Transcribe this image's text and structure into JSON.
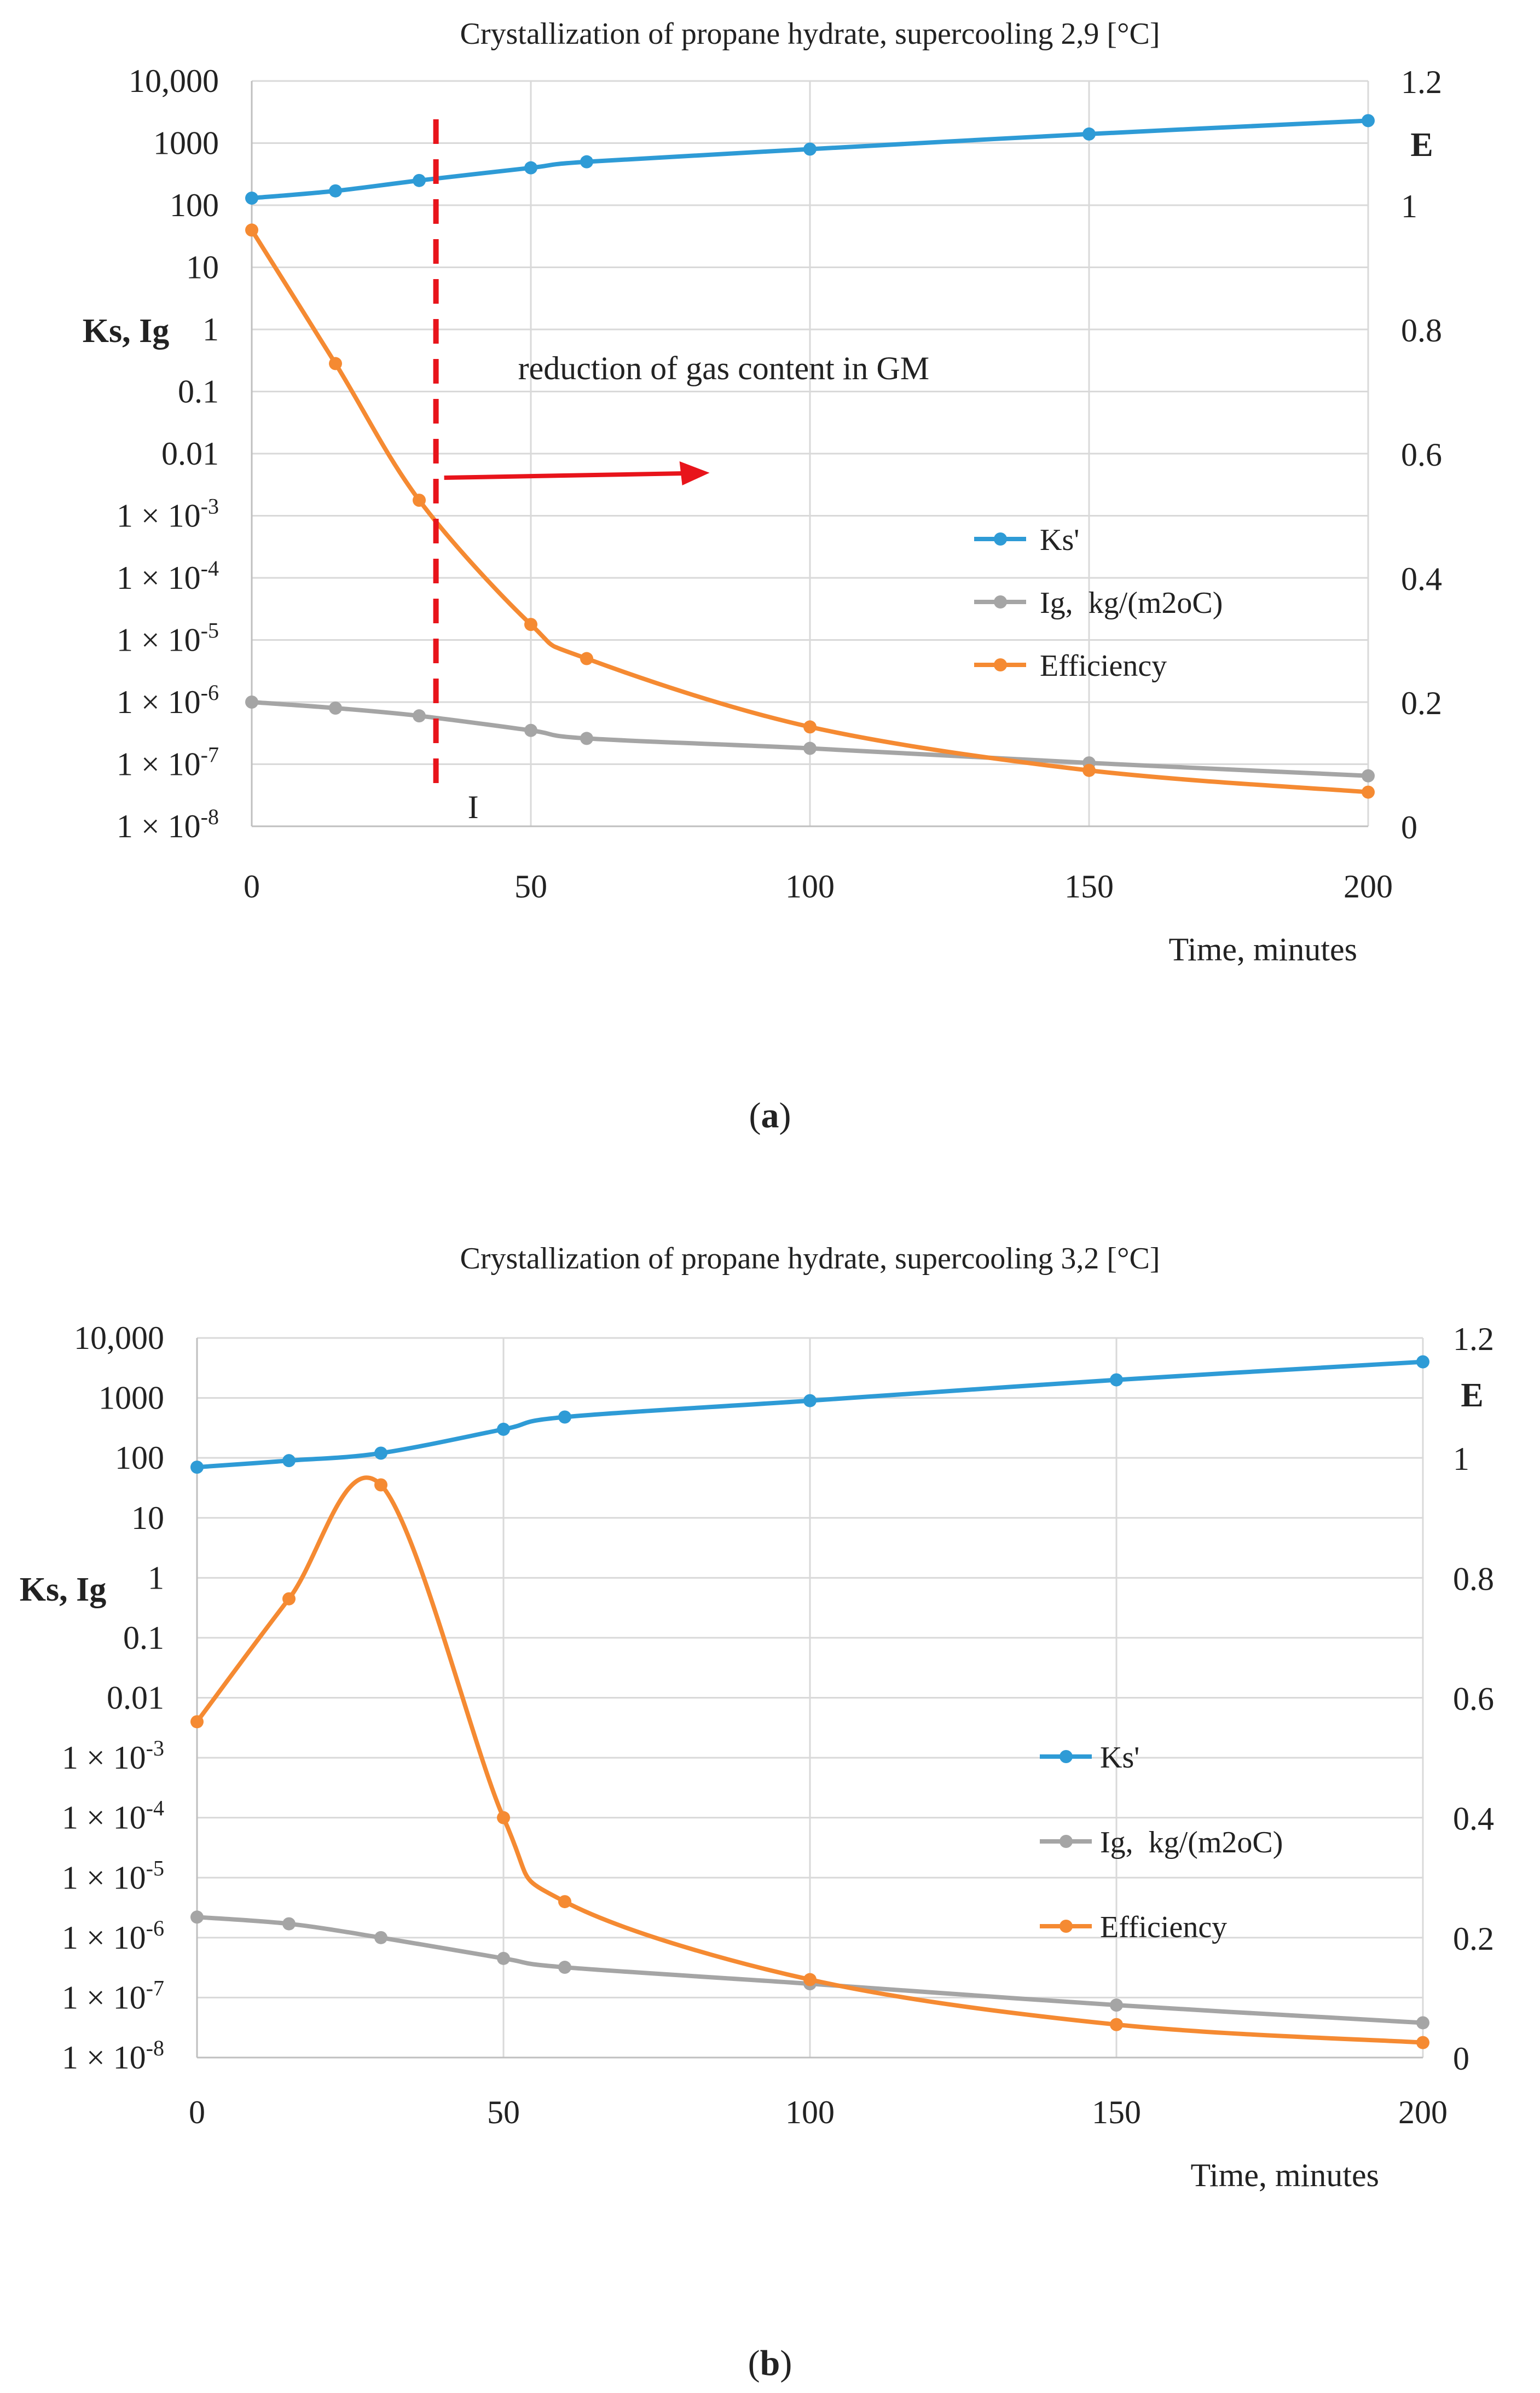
{
  "chart_data": [
    {
      "type": "line",
      "panel": "a",
      "title": "Crystallization of propane hydrate, supercooling  2,9 [°C]",
      "xlabel": "Time, minutes",
      "ylabel_left": "Ks, Ig",
      "ylabel_right": "E",
      "x_ticks": [
        "0",
        "50",
        "100",
        "150",
        "200"
      ],
      "xlim": [
        0,
        200
      ],
      "y_left_scale": "log",
      "y_left_ticks": [
        {
          "label": "10,000",
          "value": 10000
        },
        {
          "label": "1000",
          "value": 1000
        },
        {
          "label": "100",
          "value": 100
        },
        {
          "label": "10",
          "value": 10
        },
        {
          "label": "1",
          "value": 1
        },
        {
          "label": "0.1",
          "value": 0.1
        },
        {
          "label": "0.01",
          "value": 0.01
        },
        {
          "label": "1 × 10",
          "exp": "-3",
          "value": 0.001
        },
        {
          "label": "1 × 10",
          "exp": "-4",
          "value": 0.0001
        },
        {
          "label": "1 × 10",
          "exp": "-5",
          "value": 1e-05
        },
        {
          "label": "1 × 10",
          "exp": "-6",
          "value": 1e-06
        },
        {
          "label": "1 × 10",
          "exp": "-7",
          "value": 1e-07
        },
        {
          "label": "1 × 10",
          "exp": "-8",
          "value": 1e-08
        }
      ],
      "y_right_ticks": [
        "0",
        "0.2",
        "0.4",
        "0.6",
        "0.8",
        "1",
        "1.2"
      ],
      "y_right_lim": [
        0,
        1.2
      ],
      "series": [
        {
          "name": "Ks'",
          "axis": "left",
          "color": "#2e9bd6",
          "x": [
            0,
            15,
            30,
            50,
            60,
            100,
            150,
            200
          ],
          "y": [
            130,
            170,
            250,
            400,
            500,
            800,
            1400,
            2300
          ]
        },
        {
          "name": "Ig,",
          "unit": "kg/(m2oC)",
          "axis": "left",
          "color": "#a5a5a5",
          "x": [
            0,
            15,
            30,
            50,
            60,
            100,
            150,
            200
          ],
          "y": [
            1e-06,
            8e-07,
            6e-07,
            3.5e-07,
            2.6e-07,
            1.8e-07,
            1.05e-07,
            6.5e-08
          ]
        },
        {
          "name": "Efficiency",
          "axis": "right",
          "color": "#f58a32",
          "x": [
            0,
            15,
            30,
            50,
            60,
            100,
            150,
            200
          ],
          "y": [
            0.96,
            0.745,
            0.525,
            0.325,
            0.27,
            0.16,
            0.09,
            0.055
          ]
        }
      ],
      "vline": {
        "x": 33,
        "label": "I",
        "color": "#e8141b"
      },
      "annotation": {
        "text": "reduction of gas content in GM",
        "color": "#e8141b"
      },
      "legend": "right-center",
      "grid": true
    },
    {
      "type": "line",
      "panel": "b",
      "title": "Crystallization of propane hydrate, supercooling 3,2 [°C]",
      "xlabel": "Time, minutes",
      "ylabel_left": "Ks, Ig",
      "ylabel_right": "E",
      "x_ticks": [
        "0",
        "50",
        "100",
        "150",
        "200"
      ],
      "xlim": [
        0,
        200
      ],
      "y_left_scale": "log",
      "y_left_ticks": [
        {
          "label": "10,000",
          "value": 10000
        },
        {
          "label": "1000",
          "value": 1000
        },
        {
          "label": "100",
          "value": 100
        },
        {
          "label": "10",
          "value": 10
        },
        {
          "label": "1",
          "value": 1
        },
        {
          "label": "0.1",
          "value": 0.1
        },
        {
          "label": "0.01",
          "value": 0.01
        },
        {
          "label": "1 × 10",
          "exp": "-3",
          "value": 0.001
        },
        {
          "label": "1 × 10",
          "exp": "-4",
          "value": 0.0001
        },
        {
          "label": "1 × 10",
          "exp": "-5",
          "value": 1e-05
        },
        {
          "label": "1 × 10",
          "exp": "-6",
          "value": 1e-06
        },
        {
          "label": "1 × 10",
          "exp": "-7",
          "value": 1e-07
        },
        {
          "label": "1 × 10",
          "exp": "-8",
          "value": 1e-08
        }
      ],
      "y_right_ticks": [
        "0",
        "0.2",
        "0.4",
        "0.6",
        "0.8",
        "1",
        "1.2"
      ],
      "y_right_lim": [
        0,
        1.2
      ],
      "series": [
        {
          "name": "Ks'",
          "axis": "left",
          "color": "#2e9bd6",
          "x": [
            0,
            15,
            30,
            50,
            60,
            100,
            150,
            200
          ],
          "y": [
            70,
            90,
            120,
            300,
            480,
            900,
            2000,
            4000
          ]
        },
        {
          "name": "Ig,",
          "unit": "kg/(m2oC)",
          "axis": "left",
          "color": "#a5a5a5",
          "x": [
            0,
            15,
            30,
            50,
            60,
            100,
            150,
            200
          ],
          "y": [
            2.2e-06,
            1.7e-06,
            1e-06,
            4.5e-07,
            3.2e-07,
            1.7e-07,
            7.5e-08,
            3.8e-08
          ]
        },
        {
          "name": "Efficiency",
          "axis": "right",
          "color": "#f58a32",
          "x": [
            0,
            15,
            30,
            50,
            60,
            100,
            150,
            200
          ],
          "y": [
            0.56,
            0.765,
            0.955,
            0.4,
            0.26,
            0.13,
            0.055,
            0.025
          ]
        }
      ],
      "legend": "right-center",
      "grid": true
    }
  ],
  "captions": [
    "a",
    "b"
  ]
}
